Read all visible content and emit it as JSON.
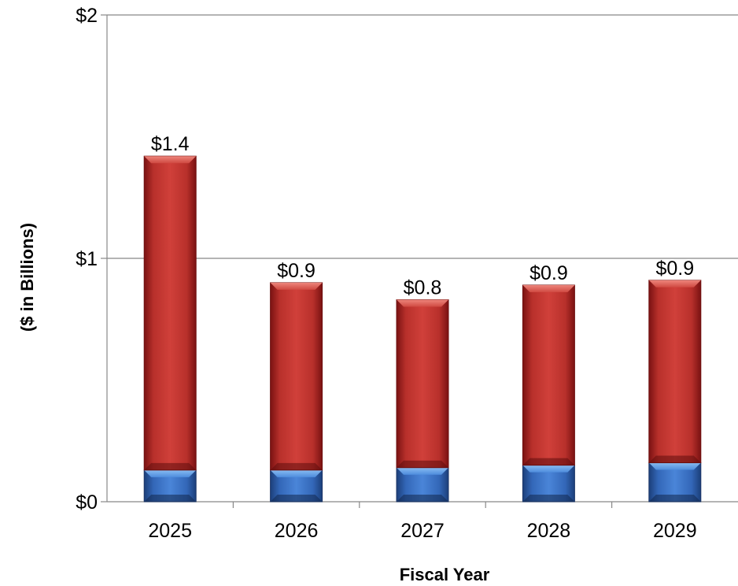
{
  "chart_data": {
    "type": "bar",
    "stacked": true,
    "title": "",
    "xlabel": "Fiscal Year",
    "ylabel": "($ in Billions)",
    "categories": [
      "2025",
      "2026",
      "2027",
      "2028",
      "2029"
    ],
    "series": [
      {
        "values": [
          0.13,
          0.13,
          0.14,
          0.15,
          0.16
        ],
        "color": "#3b6fc4"
      },
      {
        "values": [
          1.29,
          0.77,
          0.69,
          0.74,
          0.75
        ],
        "color": "#c0332f"
      }
    ],
    "totals": [
      1.42,
      0.9,
      0.83,
      0.89,
      0.91
    ],
    "data_labels": [
      "$1.4",
      "$0.9",
      "$0.8",
      "$0.9",
      "$0.9"
    ],
    "ylim": [
      0,
      2
    ],
    "yticks": [
      0,
      1,
      2
    ],
    "ytick_labels": [
      "$0",
      "$1",
      "$2"
    ],
    "grid": true
  }
}
